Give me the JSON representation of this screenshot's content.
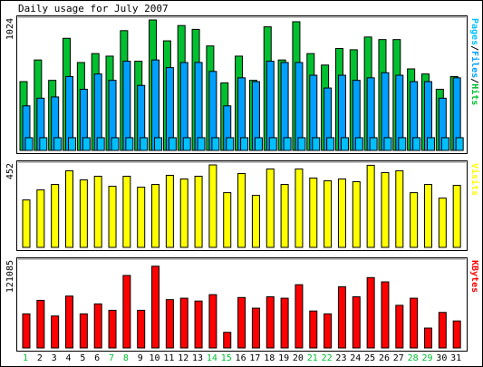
{
  "title": "Daily usage for July 2007",
  "colors": {
    "background": "#ffffff",
    "panel_bg": "#ffffff",
    "frame": "#000000",
    "panel_border": "#808080",
    "hits": "#00c030",
    "files": "#00a0ff",
    "pages": "#00c0ff",
    "visits": "#ffff00",
    "kbytes": "#ff0000",
    "weekday_label": "#000000",
    "weekend_label": "#00c030"
  },
  "chart_data": [
    {
      "type": "bar",
      "panel": "hits-files-pages",
      "ylabel": "1024",
      "right_label_parts": [
        {
          "text": "Pages",
          "color": "#00c0ff"
        },
        {
          "text": "/",
          "color": "#000000"
        },
        {
          "text": "Files",
          "color": "#00a0ff"
        },
        {
          "text": "/",
          "color": "#000000"
        },
        {
          "text": "Hits",
          "color": "#00c030"
        }
      ],
      "categories": [
        "1",
        "2",
        "3",
        "4",
        "5",
        "6",
        "7",
        "8",
        "9",
        "10",
        "11",
        "12",
        "13",
        "14",
        "15",
        "16",
        "17",
        "18",
        "19",
        "20",
        "21",
        "22",
        "23",
        "24",
        "25",
        "26",
        "27",
        "28",
        "29",
        "30",
        "31"
      ],
      "ylim": [
        0,
        1024
      ],
      "series": [
        {
          "name": "Hits",
          "values": [
            540,
            710,
            550,
            880,
            690,
            760,
            740,
            940,
            700,
            1024,
            860,
            980,
            950,
            820,
            530,
            740,
            550,
            970,
            710,
            1010,
            760,
            670,
            800,
            790,
            890,
            870,
            870,
            640,
            600,
            480,
            580
          ]
        },
        {
          "name": "Files",
          "values": [
            350,
            410,
            420,
            580,
            480,
            600,
            550,
            700,
            510,
            710,
            650,
            690,
            690,
            620,
            350,
            570,
            540,
            700,
            690,
            690,
            590,
            490,
            590,
            550,
            570,
            610,
            590,
            540,
            540,
            410,
            570
          ]
        },
        {
          "name": "Pages",
          "values": [
            100,
            100,
            100,
            100,
            100,
            100,
            100,
            100,
            100,
            100,
            100,
            100,
            100,
            100,
            100,
            100,
            100,
            100,
            100,
            100,
            100,
            100,
            100,
            100,
            100,
            100,
            100,
            100,
            100,
            100,
            100
          ]
        }
      ]
    },
    {
      "type": "bar",
      "panel": "visits",
      "ylabel": "452",
      "right_label_parts": [
        {
          "text": "Visits",
          "color": "#ffff00"
        }
      ],
      "categories": [
        "1",
        "2",
        "3",
        "4",
        "5",
        "6",
        "7",
        "8",
        "9",
        "10",
        "11",
        "12",
        "13",
        "14",
        "15",
        "16",
        "17",
        "18",
        "19",
        "20",
        "21",
        "22",
        "23",
        "24",
        "25",
        "26",
        "27",
        "28",
        "29",
        "30",
        "31"
      ],
      "ylim": [
        0,
        452
      ],
      "series": [
        {
          "name": "Visits",
          "values": [
            260,
            315,
            345,
            420,
            370,
            390,
            335,
            390,
            330,
            345,
            395,
            375,
            390,
            452,
            300,
            405,
            285,
            430,
            345,
            430,
            380,
            365,
            375,
            360,
            450,
            410,
            420,
            300,
            345,
            270,
            340
          ]
        }
      ]
    },
    {
      "type": "bar",
      "panel": "kbytes",
      "ylabel": "121085",
      "right_label_parts": [
        {
          "text": "KBytes",
          "color": "#ff0000"
        }
      ],
      "categories": [
        "1",
        "2",
        "3",
        "4",
        "5",
        "6",
        "7",
        "8",
        "9",
        "10",
        "11",
        "12",
        "13",
        "14",
        "15",
        "16",
        "17",
        "18",
        "19",
        "20",
        "21",
        "22",
        "23",
        "24",
        "25",
        "26",
        "27",
        "28",
        "29",
        "30",
        "31"
      ],
      "ylim": [
        0,
        121085
      ],
      "series": [
        {
          "name": "KBytes",
          "values": [
            48000,
            67000,
            45000,
            73000,
            48000,
            62000,
            53000,
            102000,
            53000,
            115000,
            68000,
            70000,
            66000,
            75000,
            22000,
            71000,
            56000,
            72000,
            70000,
            89000,
            52000,
            48000,
            86000,
            72000,
            99000,
            93000,
            60000,
            70000,
            28000,
            50000,
            38000
          ]
        }
      ]
    }
  ],
  "days": [
    {
      "label": "1",
      "weekend": true
    },
    {
      "label": "2",
      "weekend": false
    },
    {
      "label": "3",
      "weekend": false
    },
    {
      "label": "4",
      "weekend": false
    },
    {
      "label": "5",
      "weekend": false
    },
    {
      "label": "6",
      "weekend": false
    },
    {
      "label": "7",
      "weekend": true
    },
    {
      "label": "8",
      "weekend": true
    },
    {
      "label": "9",
      "weekend": false
    },
    {
      "label": "10",
      "weekend": false
    },
    {
      "label": "11",
      "weekend": false
    },
    {
      "label": "12",
      "weekend": false
    },
    {
      "label": "13",
      "weekend": false
    },
    {
      "label": "14",
      "weekend": true
    },
    {
      "label": "15",
      "weekend": true
    },
    {
      "label": "16",
      "weekend": false
    },
    {
      "label": "17",
      "weekend": false
    },
    {
      "label": "18",
      "weekend": false
    },
    {
      "label": "19",
      "weekend": false
    },
    {
      "label": "20",
      "weekend": false
    },
    {
      "label": "21",
      "weekend": true
    },
    {
      "label": "22",
      "weekend": true
    },
    {
      "label": "23",
      "weekend": false
    },
    {
      "label": "24",
      "weekend": false
    },
    {
      "label": "25",
      "weekend": false
    },
    {
      "label": "26",
      "weekend": false
    },
    {
      "label": "27",
      "weekend": false
    },
    {
      "label": "28",
      "weekend": true
    },
    {
      "label": "29",
      "weekend": true
    },
    {
      "label": "30",
      "weekend": false
    },
    {
      "label": "31",
      "weekend": false
    }
  ]
}
